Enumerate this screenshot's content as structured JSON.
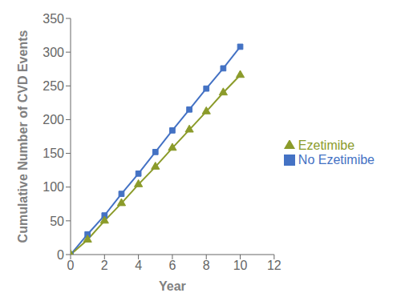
{
  "chart_data": {
    "type": "line",
    "xlabel": "Year",
    "ylabel": "Cumulative Number of CVD Events",
    "x": [
      0,
      1,
      2,
      3,
      4,
      5,
      6,
      7,
      8,
      9,
      10
    ],
    "series": [
      {
        "name": "No Ezetimibe",
        "color": "#4472C4",
        "marker": "square",
        "values": [
          0,
          30,
          58,
          90,
          120,
          152,
          184,
          215,
          246,
          276,
          308
        ]
      },
      {
        "name": "Ezetimibe",
        "color": "#8B9B2A",
        "marker": "triangle",
        "values": [
          0,
          22,
          50,
          76,
          104,
          130,
          158,
          185,
          212,
          240,
          266
        ]
      }
    ],
    "xlim": [
      0,
      12
    ],
    "ylim": [
      0,
      350
    ],
    "xticks": [
      0,
      2,
      4,
      6,
      8,
      10,
      12
    ],
    "yticks": [
      0,
      50,
      100,
      150,
      200,
      250,
      300,
      350
    ],
    "grid": false,
    "legend": "right"
  }
}
